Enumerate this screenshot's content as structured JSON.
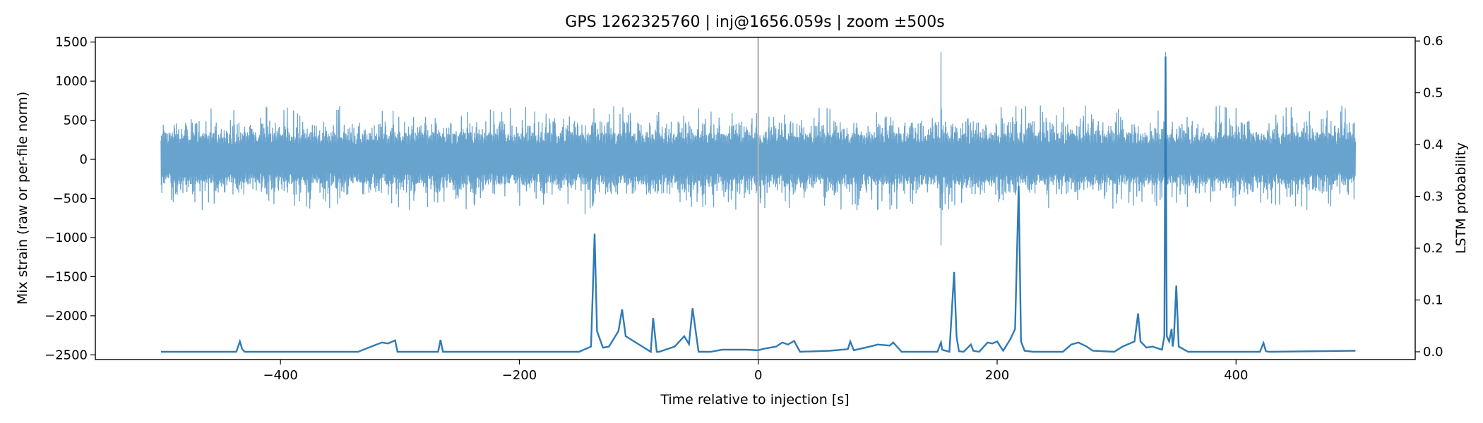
{
  "chart_data": {
    "type": "line",
    "title": "GPS 1262325760 | inj@1656.059s | zoom ±500s",
    "xlabel": "Time relative to injection [s]",
    "ylabel_left": "Mix strain (raw or per-file norm)",
    "ylabel_right": "LSTM probability",
    "xlim": [
      -555,
      550
    ],
    "ylim_left": [
      -2560,
      1560
    ],
    "ylim_right": [
      -0.015,
      0.607
    ],
    "x_ticks": [
      -400,
      -200,
      0,
      200,
      400
    ],
    "x_tick_labels": [
      "−400",
      "−200",
      "0",
      "200",
      "400"
    ],
    "y_left_ticks": [
      1500,
      1000,
      500,
      0,
      -500,
      -1000,
      -1500,
      -2000,
      -2500
    ],
    "y_left_tick_labels": [
      "1500",
      "1000",
      "500",
      "0",
      "−500",
      "−1000",
      "−1500",
      "−2000",
      "−2500"
    ],
    "y_right_ticks": [
      0.6,
      0.5,
      0.4,
      0.3,
      0.2,
      0.1,
      0.0
    ],
    "y_right_tick_labels": [
      "0.6",
      "0.5",
      "0.4",
      "0.3",
      "0.2",
      "0.1",
      "0.0"
    ],
    "grid": false,
    "injection_marker_x": 0,
    "colors": {
      "strain": "#5b9bc9",
      "prob": "#2f7ab5",
      "marker": "#b0b0b0"
    },
    "series": [
      {
        "axis": "left",
        "style": "dense-noise",
        "x_range": [
          -500,
          500
        ],
        "envelope": [
          -650,
          700
        ],
        "burst_peaks": [
          {
            "x": 153,
            "y": 1370
          },
          {
            "x": 153,
            "y": -1100
          },
          {
            "x": 341,
            "y": 1370
          },
          {
            "x": -145,
            "y": -700
          },
          {
            "x": 218,
            "y": -420
          }
        ]
      },
      {
        "axis": "right",
        "style": "line",
        "x": [
          -500,
          -437,
          -434,
          -432,
          -430,
          -335,
          -322,
          -315,
          -310,
          -304,
          -302,
          -268,
          -266,
          -264,
          -150,
          -140,
          -137,
          -135,
          -130,
          -125,
          -117,
          -114,
          -111,
          -90,
          -88,
          -85,
          -83,
          -70,
          -62,
          -58,
          -55,
          -50,
          -40,
          -30,
          -10,
          0,
          5,
          15,
          20,
          25,
          30,
          35,
          60,
          75,
          77,
          80,
          95,
          100,
          110,
          113,
          120,
          150,
          152,
          153,
          154,
          160,
          164,
          166,
          168,
          172,
          178,
          180,
          185,
          192,
          196,
          200,
          205,
          211,
          215,
          218,
          220,
          223,
          230,
          255,
          262,
          268,
          275,
          280,
          298,
          305,
          315,
          318,
          320,
          325,
          330,
          338,
          340,
          341,
          342,
          344,
          346,
          347,
          348,
          350,
          352,
          360,
          420,
          423,
          425,
          428,
          500
        ],
        "y": [
          0.0,
          0.0,
          0.02,
          0.005,
          0.0,
          0.0,
          0.012,
          0.018,
          0.016,
          0.022,
          0.0,
          0.0,
          0.023,
          0.0,
          0.0,
          0.01,
          0.228,
          0.04,
          0.008,
          0.01,
          0.04,
          0.082,
          0.03,
          0.0,
          0.065,
          0.0,
          0.0,
          0.01,
          0.03,
          0.015,
          0.084,
          0.0,
          0.0,
          0.004,
          0.004,
          0.003,
          0.006,
          0.01,
          0.018,
          0.014,
          0.021,
          0.0,
          0.002,
          0.005,
          0.02,
          0.003,
          0.011,
          0.014,
          0.012,
          0.018,
          0.0,
          0.0,
          0.012,
          0.018,
          0.004,
          0.0,
          0.154,
          0.03,
          0.001,
          0.0,
          0.014,
          0.002,
          0.0,
          0.018,
          0.016,
          0.02,
          0.002,
          0.024,
          0.044,
          0.32,
          0.02,
          0.002,
          0.0,
          0.0,
          0.014,
          0.018,
          0.01,
          0.002,
          0.0,
          0.01,
          0.02,
          0.074,
          0.02,
          0.008,
          0.01,
          0.004,
          0.03,
          0.57,
          0.03,
          0.02,
          0.044,
          0.01,
          0.027,
          0.128,
          0.01,
          0.0,
          0.0,
          0.017,
          0.001,
          0.0,
          0.002
        ]
      }
    ]
  }
}
